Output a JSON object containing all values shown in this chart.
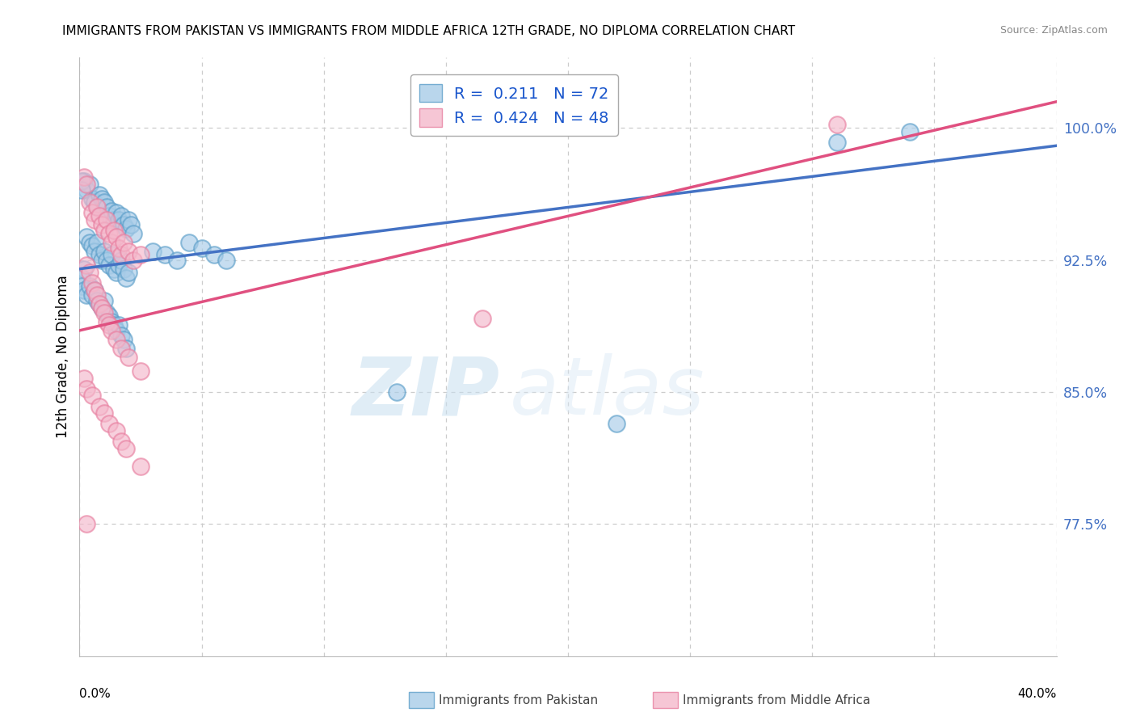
{
  "title": "IMMIGRANTS FROM PAKISTAN VS IMMIGRANTS FROM MIDDLE AFRICA 12TH GRADE, NO DIPLOMA CORRELATION CHART",
  "source": "Source: ZipAtlas.com",
  "ylabel": "12th Grade, No Diploma",
  "yticks": [
    0.775,
    0.85,
    0.925,
    1.0
  ],
  "ytick_labels": [
    "77.5%",
    "85.0%",
    "92.5%",
    "100.0%"
  ],
  "xmin": 0.0,
  "xmax": 0.4,
  "ymin": 0.7,
  "ymax": 1.04,
  "pakistan_R": 0.211,
  "pakistan_N": 72,
  "middleafrica_R": 0.424,
  "middleafrica_N": 48,
  "pakistan_color": "#a8cce8",
  "middleafrica_color": "#f4b8cb",
  "pakistan_edge_color": "#5b9ec9",
  "middleafrica_edge_color": "#e87fa0",
  "pakistan_line_color": "#4472c4",
  "middleafrica_line_color": "#e05080",
  "legend_R_color": "#1a56cc",
  "watermark_zip": "ZIP",
  "watermark_atlas": "atlas",
  "pakistan_scatter": [
    [
      0.002,
      0.97
    ],
    [
      0.003,
      0.965
    ],
    [
      0.004,
      0.968
    ],
    [
      0.005,
      0.96
    ],
    [
      0.006,
      0.958
    ],
    [
      0.007,
      0.955
    ],
    [
      0.008,
      0.962
    ],
    [
      0.009,
      0.96
    ],
    [
      0.01,
      0.958
    ],
    [
      0.011,
      0.955
    ],
    [
      0.012,
      0.95
    ],
    [
      0.013,
      0.953
    ],
    [
      0.014,
      0.948
    ],
    [
      0.015,
      0.952
    ],
    [
      0.016,
      0.948
    ],
    [
      0.017,
      0.95
    ],
    [
      0.018,
      0.945
    ],
    [
      0.019,
      0.943
    ],
    [
      0.02,
      0.948
    ],
    [
      0.021,
      0.945
    ],
    [
      0.022,
      0.94
    ],
    [
      0.003,
      0.938
    ],
    [
      0.004,
      0.935
    ],
    [
      0.005,
      0.933
    ],
    [
      0.006,
      0.93
    ],
    [
      0.007,
      0.935
    ],
    [
      0.008,
      0.928
    ],
    [
      0.009,
      0.925
    ],
    [
      0.01,
      0.93
    ],
    [
      0.011,
      0.925
    ],
    [
      0.012,
      0.922
    ],
    [
      0.013,
      0.928
    ],
    [
      0.014,
      0.92
    ],
    [
      0.015,
      0.918
    ],
    [
      0.016,
      0.922
    ],
    [
      0.017,
      0.925
    ],
    [
      0.018,
      0.92
    ],
    [
      0.019,
      0.915
    ],
    [
      0.02,
      0.918
    ],
    [
      0.002,
      0.92
    ],
    [
      0.001,
      0.915
    ],
    [
      0.001,
      0.91
    ],
    [
      0.002,
      0.908
    ],
    [
      0.003,
      0.905
    ],
    [
      0.004,
      0.91
    ],
    [
      0.005,
      0.905
    ],
    [
      0.006,
      0.908
    ],
    [
      0.007,
      0.902
    ],
    [
      0.008,
      0.9
    ],
    [
      0.009,
      0.898
    ],
    [
      0.01,
      0.902
    ],
    [
      0.011,
      0.895
    ],
    [
      0.012,
      0.893
    ],
    [
      0.013,
      0.89
    ],
    [
      0.014,
      0.888
    ],
    [
      0.015,
      0.885
    ],
    [
      0.016,
      0.888
    ],
    [
      0.017,
      0.882
    ],
    [
      0.018,
      0.88
    ],
    [
      0.019,
      0.875
    ],
    [
      0.03,
      0.93
    ],
    [
      0.035,
      0.928
    ],
    [
      0.04,
      0.925
    ],
    [
      0.045,
      0.935
    ],
    [
      0.05,
      0.932
    ],
    [
      0.055,
      0.928
    ],
    [
      0.06,
      0.925
    ],
    [
      0.13,
      0.85
    ],
    [
      0.22,
      0.832
    ],
    [
      0.31,
      0.992
    ],
    [
      0.34,
      0.998
    ],
    [
      0.001,
      0.97
    ],
    [
      0.001,
      0.965
    ]
  ],
  "middleafrica_scatter": [
    [
      0.002,
      0.972
    ],
    [
      0.003,
      0.968
    ],
    [
      0.31,
      1.002
    ],
    [
      0.004,
      0.958
    ],
    [
      0.005,
      0.952
    ],
    [
      0.006,
      0.948
    ],
    [
      0.007,
      0.955
    ],
    [
      0.008,
      0.95
    ],
    [
      0.009,
      0.945
    ],
    [
      0.01,
      0.942
    ],
    [
      0.011,
      0.948
    ],
    [
      0.012,
      0.94
    ],
    [
      0.013,
      0.935
    ],
    [
      0.014,
      0.942
    ],
    [
      0.015,
      0.938
    ],
    [
      0.016,
      0.932
    ],
    [
      0.017,
      0.928
    ],
    [
      0.018,
      0.935
    ],
    [
      0.02,
      0.93
    ],
    [
      0.022,
      0.925
    ],
    [
      0.025,
      0.928
    ],
    [
      0.003,
      0.922
    ],
    [
      0.004,
      0.918
    ],
    [
      0.005,
      0.912
    ],
    [
      0.006,
      0.908
    ],
    [
      0.007,
      0.905
    ],
    [
      0.008,
      0.9
    ],
    [
      0.009,
      0.898
    ],
    [
      0.01,
      0.895
    ],
    [
      0.011,
      0.89
    ],
    [
      0.012,
      0.888
    ],
    [
      0.013,
      0.885
    ],
    [
      0.015,
      0.88
    ],
    [
      0.017,
      0.875
    ],
    [
      0.02,
      0.87
    ],
    [
      0.025,
      0.862
    ],
    [
      0.002,
      0.858
    ],
    [
      0.003,
      0.852
    ],
    [
      0.005,
      0.848
    ],
    [
      0.008,
      0.842
    ],
    [
      0.01,
      0.838
    ],
    [
      0.012,
      0.832
    ],
    [
      0.015,
      0.828
    ],
    [
      0.017,
      0.822
    ],
    [
      0.019,
      0.818
    ],
    [
      0.025,
      0.808
    ],
    [
      0.003,
      0.775
    ],
    [
      0.165,
      0.892
    ]
  ],
  "trend_pak_x0": 0.0,
  "trend_pak_y0": 0.92,
  "trend_pak_x1": 0.4,
  "trend_pak_y1": 0.99,
  "trend_mid_x0": 0.0,
  "trend_mid_y0": 0.885,
  "trend_mid_x1": 0.4,
  "trend_mid_y1": 1.015
}
